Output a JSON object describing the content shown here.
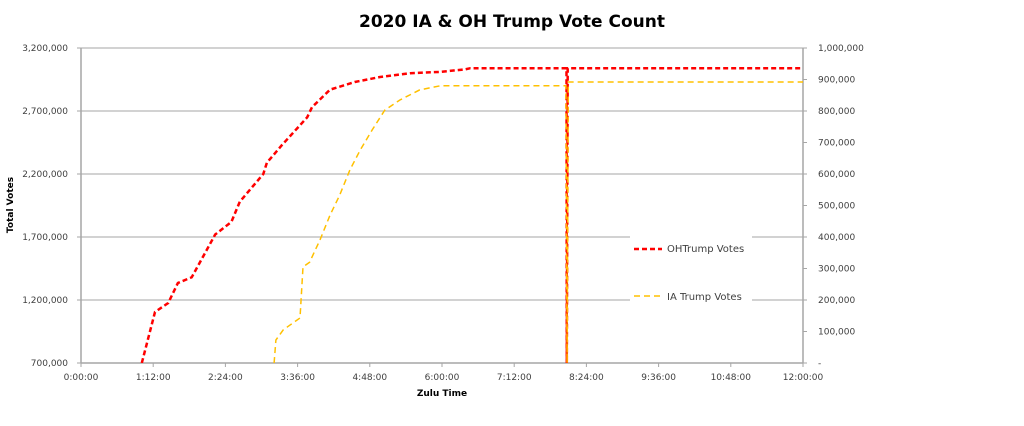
{
  "chart_data": {
    "type": "line",
    "title": "2020 IA & OH Trump Vote Count",
    "xlabel": "Zulu Time",
    "ylabel": "Total Votes",
    "y2label": "",
    "xlim_hours": [
      0,
      12
    ],
    "ylim": [
      700000,
      3200000
    ],
    "y2lim": [
      0,
      1000000
    ],
    "x_ticks": [
      "0:00:00",
      "1:12:00",
      "2:24:00",
      "3:36:00",
      "4:48:00",
      "6:00:00",
      "7:12:00",
      "8:24:00",
      "9:36:00",
      "10:48:00",
      "12:00:00"
    ],
    "y_ticks": [
      "700,000",
      "1,200,000",
      "1,700,000",
      "2,200,000",
      "2,700,000",
      "3,200,000"
    ],
    "y2_ticks": [
      "-",
      "100,000",
      "200,000",
      "300,000",
      "400,000",
      "500,000",
      "600,000",
      "700,000",
      "800,000",
      "900,000",
      "1,000,000"
    ],
    "grid": true,
    "legend_position": "center-right",
    "series": [
      {
        "name": "OHTrump Votes",
        "axis": "left",
        "color": "#ff0000",
        "style": "dashed-thick",
        "points": [
          [
            1.01,
            700000
          ],
          [
            1.23,
            1105000
          ],
          [
            1.45,
            1176000
          ],
          [
            1.61,
            1335000
          ],
          [
            1.84,
            1380000
          ],
          [
            2.23,
            1720000
          ],
          [
            2.5,
            1820000
          ],
          [
            2.64,
            1980000
          ],
          [
            3.03,
            2200000
          ],
          [
            3.09,
            2290000
          ],
          [
            3.34,
            2430000
          ],
          [
            3.76,
            2650000
          ],
          [
            3.84,
            2730000
          ],
          [
            4.14,
            2870000
          ],
          [
            4.55,
            2930000
          ],
          [
            4.97,
            2970000
          ],
          [
            5.47,
            3000000
          ],
          [
            5.97,
            3010000
          ],
          [
            6.38,
            3030000
          ],
          [
            6.47,
            3040000
          ],
          [
            8.07,
            3040000
          ],
          [
            8.075,
            0
          ],
          [
            8.09,
            3040000
          ],
          [
            12,
            3040000
          ]
        ]
      },
      {
        "name": "IA Trump Votes",
        "axis": "right",
        "color": "#ffc000",
        "style": "dashed-thin",
        "points": [
          [
            3.21,
            0
          ],
          [
            3.24,
            73000
          ],
          [
            3.36,
            105000
          ],
          [
            3.47,
            120000
          ],
          [
            3.64,
            143000
          ],
          [
            3.69,
            305000
          ],
          [
            3.8,
            320000
          ],
          [
            3.97,
            390000
          ],
          [
            4.14,
            470000
          ],
          [
            4.3,
            533000
          ],
          [
            4.47,
            613000
          ],
          [
            4.64,
            676000
          ],
          [
            4.84,
            740000
          ],
          [
            5.05,
            803000
          ],
          [
            5.3,
            835000
          ],
          [
            5.63,
            867000
          ],
          [
            5.97,
            880000
          ],
          [
            8.06,
            880000
          ],
          [
            8.08,
            0
          ],
          [
            8.1,
            892000
          ],
          [
            12,
            892000
          ]
        ]
      }
    ]
  }
}
